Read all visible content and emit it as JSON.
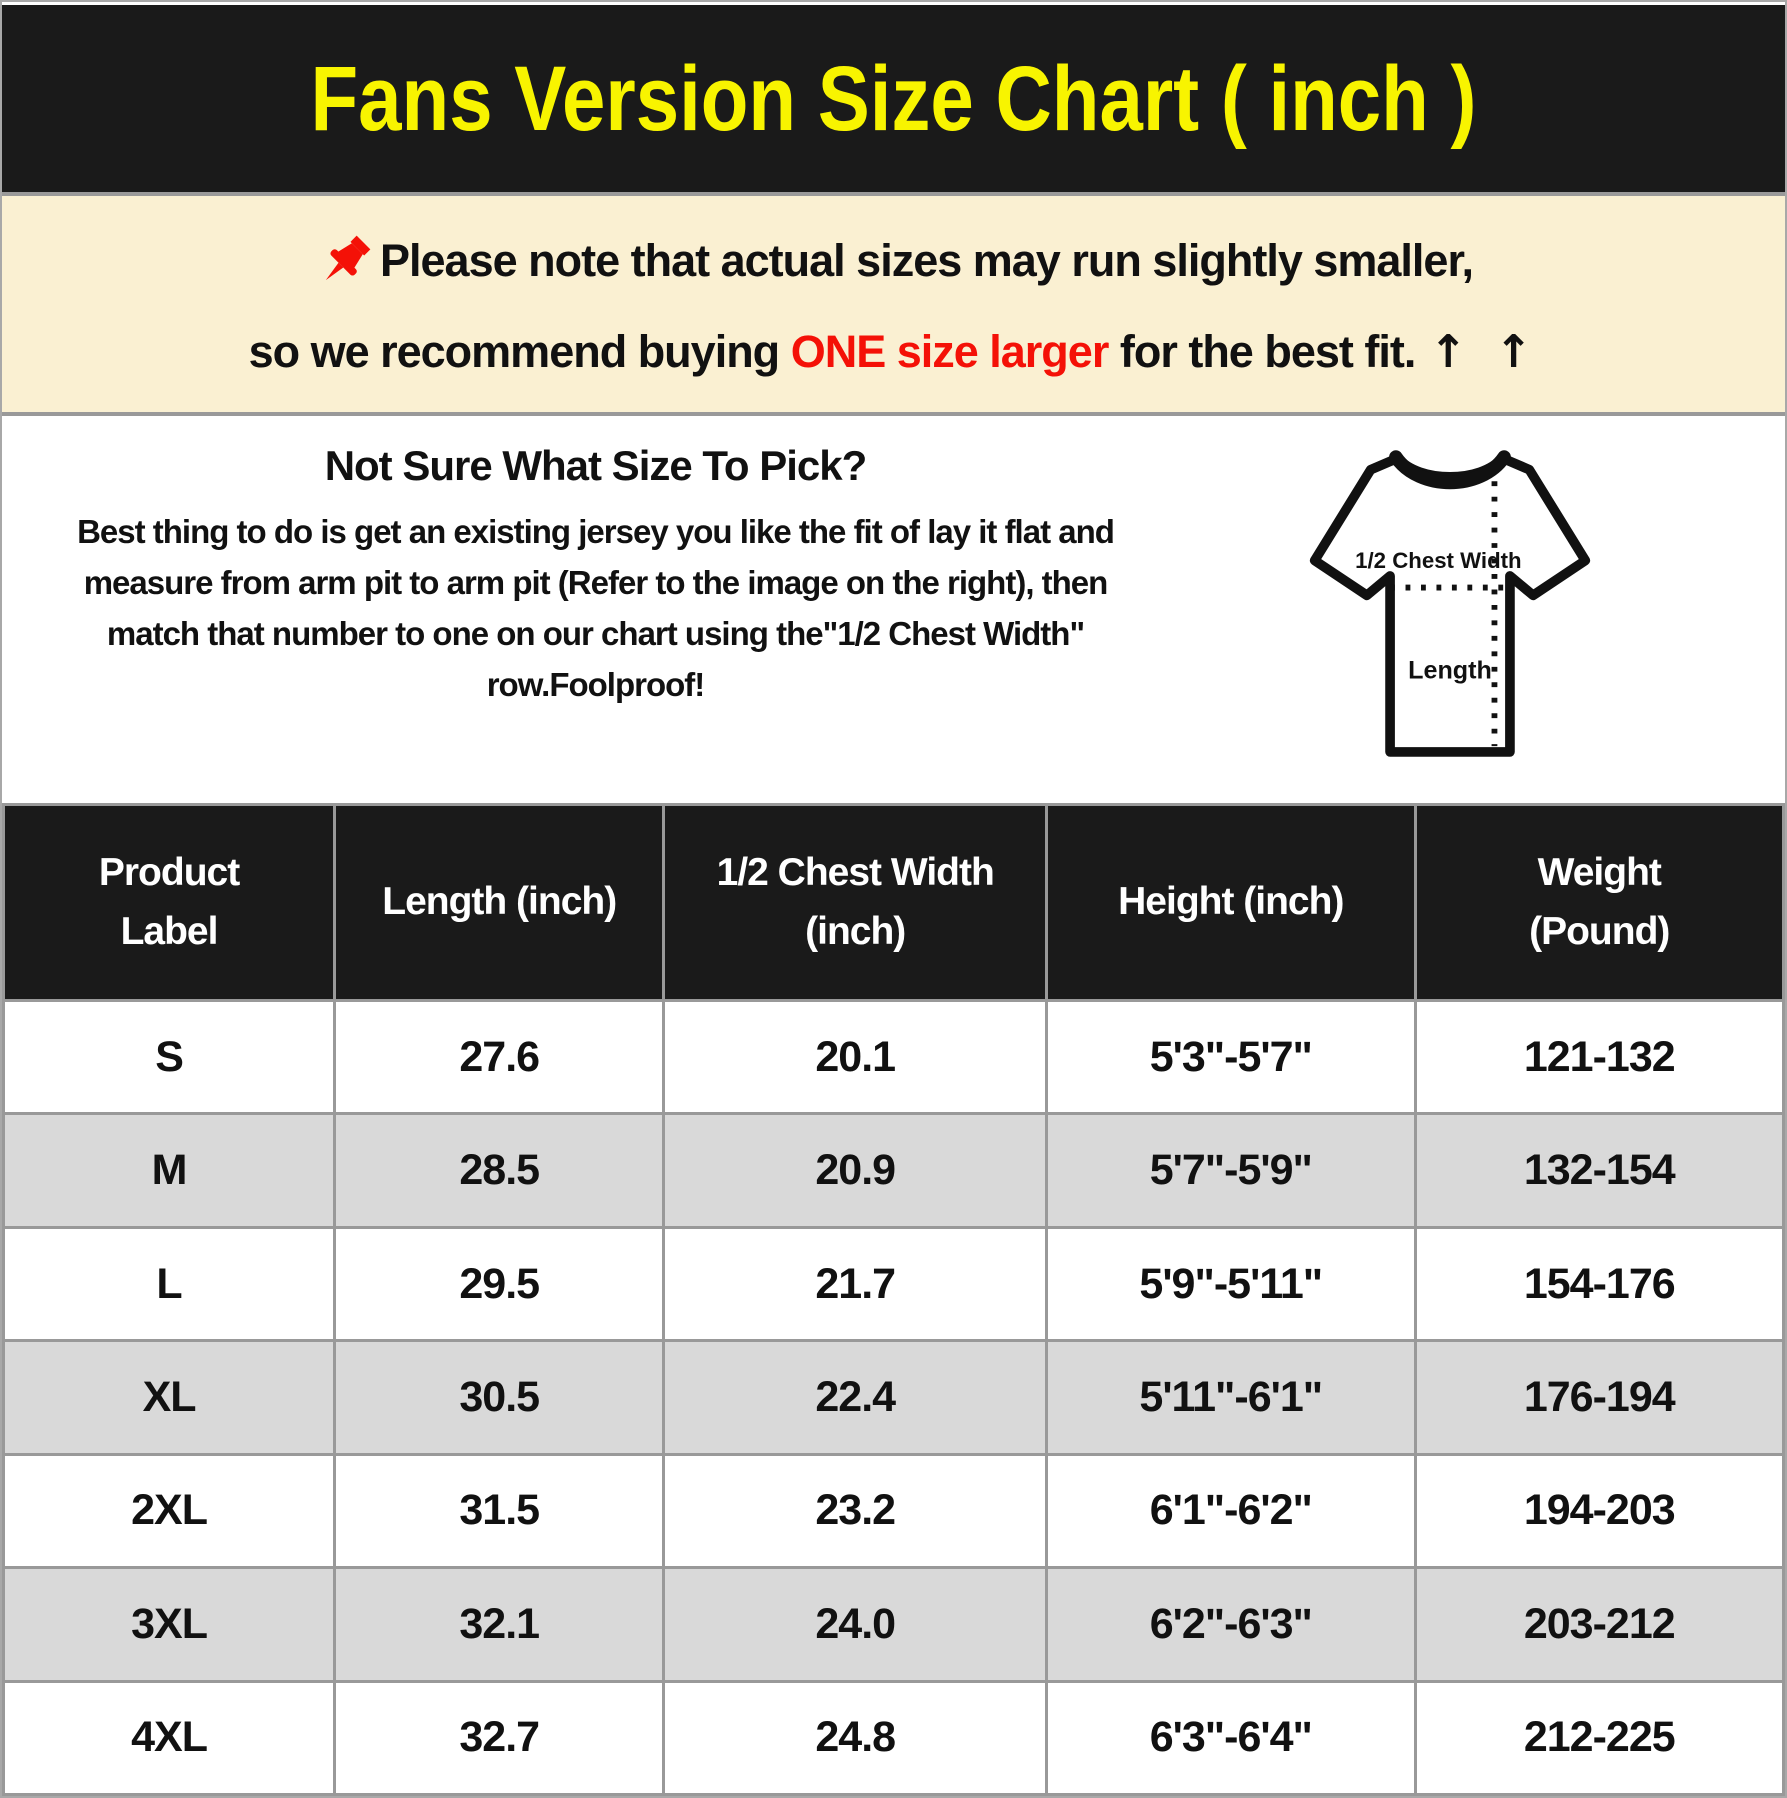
{
  "page": {
    "title": "Fans Version Size Chart ( inch )"
  },
  "notice": {
    "line1": "Please note that actual sizes may run slightly smaller,",
    "line2_prefix": "so we recommend buying ",
    "line2_highlight": "ONE size larger",
    "line2_suffix": " for the best fit.",
    "arrows": "↑ ↑"
  },
  "guide": {
    "heading": "Not Sure What Size To Pick?",
    "body": "Best thing to do is get an existing jersey you like the fit of lay it flat and\nmeasure from arm pit to arm pit (Refer to the image on the right), then\nmatch that number to one on our chart using the\"1/2 Chest Width\"\nrow.Foolproof!",
    "diagram": {
      "chest_label": "1/2 Chest Width",
      "length_label": "Length"
    }
  },
  "table": {
    "headers": [
      "Product\nLabel",
      "Length (inch)",
      "1/2 Chest Width\n(inch)",
      "Height (inch)",
      "Weight\n(Pound)"
    ],
    "rows": [
      [
        "S",
        "27.6",
        "20.1",
        "5'3\"-5'7\"",
        "121-132"
      ],
      [
        "M",
        "28.5",
        "20.9",
        "5'7\"-5'9\"",
        "132-154"
      ],
      [
        "L",
        "29.5",
        "21.7",
        "5'9\"-5'11\"",
        "154-176"
      ],
      [
        "XL",
        "30.5",
        "22.4",
        "5'11\"-6'1\"",
        "176-194"
      ],
      [
        "2XL",
        "31.5",
        "23.2",
        "6'1\"-6'2\"",
        "194-203"
      ],
      [
        "3XL",
        "32.1",
        "24.0",
        "6'2\"-6'3\"",
        "203-212"
      ],
      [
        "4XL",
        "32.7",
        "24.8",
        "6'3\"-6'4\"",
        "212-225"
      ]
    ]
  },
  "colors": {
    "title_bg": "#1a1a1a",
    "title_text": "#f8f400",
    "notice_bg": "#faf0d2",
    "accent_red": "#f41107",
    "row_alt_gray": "#d9d9d9",
    "border_gray": "#999999"
  }
}
